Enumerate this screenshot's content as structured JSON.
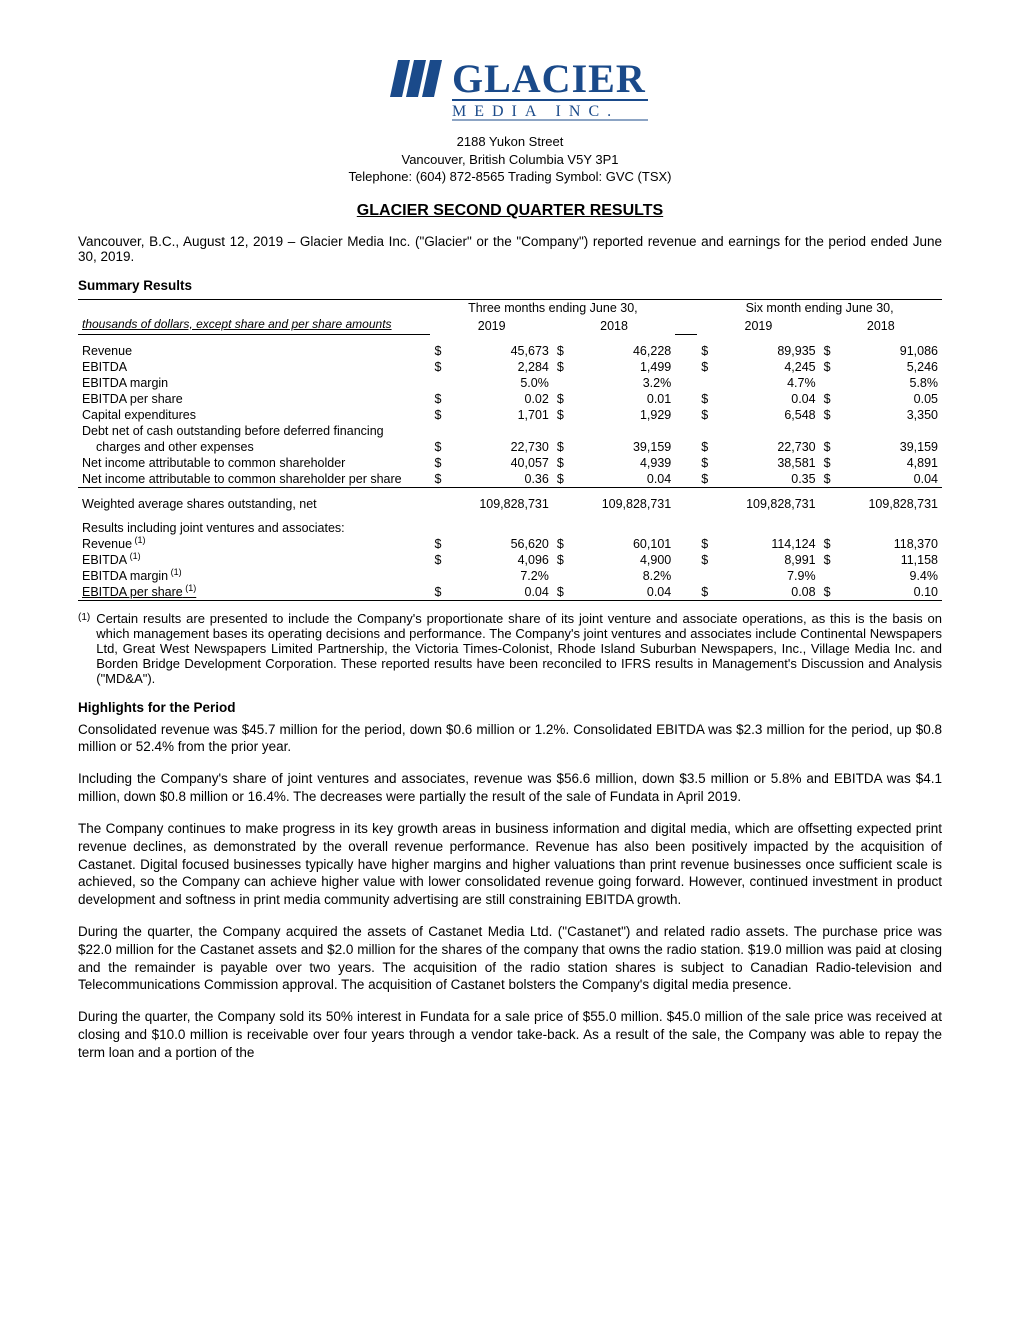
{
  "logo": {
    "company_line1": "GLACIER",
    "company_line2": "M E D I A   I N C.",
    "brand_color": "#1a4a8a",
    "text_color": "#1a4a8a"
  },
  "address": {
    "line1": "2188 Yukon Street",
    "line2": "Vancouver, British Columbia  V5Y 3P1",
    "line3": "Telephone:  (604) 872-8565  Trading Symbol:  GVC (TSX)"
  },
  "title": "GLACIER SECOND QUARTER RESULTS",
  "intro": "Vancouver, B.C., August 12, 2019 – Glacier Media Inc. (\"Glacier\" or the \"Company\") reported revenue and earnings for the period ended June 30, 2019.",
  "summary_heading": "Summary Results",
  "table": {
    "note": "thousands of dollars, except share and per share amounts",
    "period_labels": [
      "Three months ending June 30,",
      "Six month ending June 30,"
    ],
    "year_labels": [
      "2019",
      "2018",
      "2019",
      "2018"
    ],
    "rows": [
      {
        "label": "Revenue",
        "sym": "$",
        "vals": [
          "45,673",
          "46,228",
          "89,935",
          "91,086"
        ]
      },
      {
        "label": "EBITDA",
        "sym": "$",
        "vals": [
          "2,284",
          "1,499",
          "4,245",
          "5,246"
        ]
      },
      {
        "label": "EBITDA margin",
        "sym": "",
        "vals": [
          "5.0%",
          "3.2%",
          "4.7%",
          "5.8%"
        ]
      },
      {
        "label": "EBITDA per share",
        "sym": "$",
        "vals": [
          "0.02",
          "0.01",
          "0.04",
          "0.05"
        ]
      },
      {
        "label": "Capital expenditures",
        "sym": "$",
        "vals": [
          "1,701",
          "1,929",
          "6,548",
          "3,350"
        ]
      },
      {
        "label": "Debt net of cash outstanding before deferred financing",
        "sym": "",
        "vals": [
          "",
          "",
          "",
          ""
        ],
        "nowrap": true
      },
      {
        "label": "charges and other expenses",
        "sym": "$",
        "vals": [
          "22,730",
          "39,159",
          "22,730",
          "39,159"
        ],
        "indent": true
      },
      {
        "label": "Net income attributable to common shareholder",
        "sym": "$",
        "vals": [
          "40,057",
          "4,939",
          "38,581",
          "4,891"
        ]
      },
      {
        "label": "Net income attributable to common shareholder per share",
        "sym": "$",
        "vals": [
          "0.36",
          "0.04",
          "0.35",
          "0.04"
        ],
        "bottomline": true
      }
    ],
    "shares_row": {
      "label": "Weighted average shares outstanding, net",
      "vals": [
        "109,828,731",
        "109,828,731",
        "109,828,731",
        "109,828,731"
      ]
    },
    "jv_heading": "Results including joint ventures and associates:",
    "jv_rows": [
      {
        "label": "Revenue",
        "sup": "(1)",
        "sym": "$",
        "vals": [
          "56,620",
          "60,101",
          "114,124",
          "118,370"
        ]
      },
      {
        "label": "EBITDA",
        "sup": "(1)",
        "sym": "$",
        "vals": [
          "4,096",
          "4,900",
          "8,991",
          "11,158"
        ]
      },
      {
        "label": "EBITDA margin",
        "sup": "(1)",
        "sym": "",
        "vals": [
          "7.2%",
          "8.2%",
          "7.9%",
          "9.4%"
        ]
      },
      {
        "label": "EBITDA per share",
        "sup": "(1)",
        "sym": "$",
        "vals": [
          "0.04",
          "0.04",
          "0.08",
          "0.10"
        ],
        "bottomline": true,
        "underline_label": true
      }
    ]
  },
  "footnote": {
    "mark": "(1)",
    "text": "Certain results are presented to include the Company's proportionate share of its joint venture and associate operations, as this is the basis on which management bases its operating decisions and performance. The Company's joint ventures and associates include Continental Newspapers Ltd, Great West Newspapers Limited Partnership, the Victoria Times-Colonist, Rhode Island Suburban Newspapers, Inc., Village Media Inc. and Borden Bridge Development Corporation. These reported results have been reconciled to IFRS results in Management's Discussion and Analysis (\"MD&A\")."
  },
  "highlights_heading": "Highlights for the Period",
  "paragraphs": [
    "Consolidated revenue was $45.7 million for the period, down $0.6 million or 1.2%. Consolidated EBITDA was $2.3 million for the period, up $0.8 million or 52.4% from the prior year.",
    "Including the Company's share of joint ventures and associates, revenue was $56.6 million, down $3.5 million or 5.8% and EBITDA was $4.1 million, down $0.8 million or 16.4%. The decreases were partially the result of the sale of Fundata in April 2019.",
    "The Company continues to make progress in its key growth areas in business information and digital media, which are offsetting expected print revenue declines, as demonstrated by the overall revenue performance. Revenue has also been positively impacted by the acquisition of Castanet. Digital focused businesses typically have higher margins and higher valuations than print revenue businesses once sufficient scale is achieved, so the Company can achieve higher value with lower consolidated revenue going forward. However, continued investment in product development and softness in print media community advertising are still constraining EBITDA growth.",
    "During the quarter, the Company acquired the assets of Castanet Media Ltd. (\"Castanet\") and related radio assets. The purchase price was $22.0 million for the Castanet assets and $2.0 million for the shares of the company that owns the radio station. $19.0 million was paid at closing and the remainder is payable over two years. The acquisition of the radio station shares is subject to Canadian Radio-television and Telecommunications Commission approval. The acquisition of Castanet bolsters the Company's digital media presence.",
    "During the quarter, the Company sold its 50% interest in Fundata for a sale price of $55.0 million. $45.0 million of the sale price was received at closing and $10.0 million is receivable over four years through a vendor take-back. As a result of the sale, the Company was able to repay the term loan and a portion of the"
  ]
}
